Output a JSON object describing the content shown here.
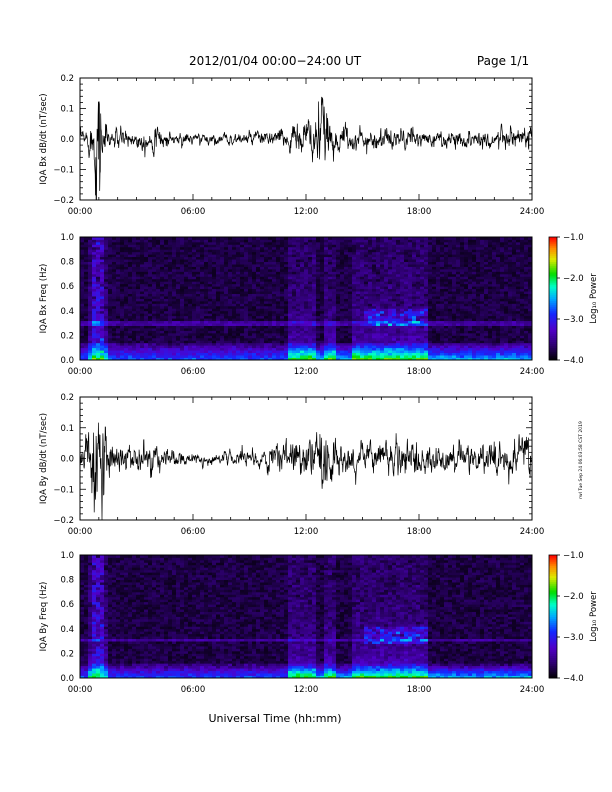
{
  "header": {
    "title": "2012/01/04  00:00−24:00 UT",
    "page": "Page 1/1"
  },
  "footer": {
    "xlabel": "Universal Time (hh:mm)",
    "side_note": "rwl Tue Sep 24 06:03:58 CST 2019"
  },
  "chart_data": [
    {
      "type": "line",
      "ylabel": "IQA Bx dB/dt (nT/sec)",
      "xlim": [
        0,
        24
      ],
      "ylim": [
        -0.2,
        0.2
      ],
      "x_ticks": [
        "00:00",
        "06:00",
        "12:00",
        "18:00",
        "24:00"
      ],
      "y_ticks": [
        "−0.2",
        "−0.1",
        "0.0",
        "0.1",
        "0.2"
      ],
      "y_tick_values": [
        -0.2,
        -0.1,
        0.0,
        0.1,
        0.2
      ],
      "envelope": {
        "hours": [
          0,
          0.5,
          0.8,
          1.0,
          1.2,
          1.5,
          2,
          3,
          3.5,
          4,
          5,
          6,
          7,
          8,
          9,
          10,
          11,
          11.5,
          12,
          12.5,
          12.8,
          13,
          13.3,
          14,
          15,
          16,
          17,
          18,
          19,
          20,
          21,
          22,
          23,
          23.6,
          23.8,
          24
        ],
        "amplitude": [
          0.02,
          0.03,
          0.1,
          0.2,
          0.08,
          0.03,
          0.025,
          0.02,
          0.03,
          0.025,
          0.02,
          0.012,
          0.012,
          0.012,
          0.015,
          0.02,
          0.025,
          0.03,
          0.05,
          0.06,
          0.1,
          0.08,
          0.04,
          0.03,
          0.025,
          0.025,
          0.025,
          0.02,
          0.018,
          0.02,
          0.02,
          0.025,
          0.03,
          0.03,
          0.04,
          0.03
        ]
      }
    },
    {
      "type": "heatmap",
      "ylabel": "IQA Bx Freq (Hz)",
      "xlim": [
        0,
        24
      ],
      "ylim": [
        0,
        1.0
      ],
      "x_ticks": [
        "00:00",
        "06:00",
        "12:00",
        "18:00",
        "24:00"
      ],
      "y_ticks": [
        "0.0",
        "0.2",
        "0.4",
        "0.6",
        "0.8",
        "1.0"
      ],
      "y_tick_values": [
        0,
        0.2,
        0.4,
        0.6,
        0.8,
        1.0
      ],
      "colorbar": {
        "label": "Log₁₀ Power",
        "range": [
          -4.0,
          -1.0
        ],
        "ticks": [
          "−1.0",
          "−2.0",
          "−3.0",
          "−4.0"
        ],
        "tick_values": [
          -1.0,
          -2.0,
          -3.0,
          -4.0
        ]
      },
      "features": {
        "background_log_power": -3.9,
        "low_freq_band_hz": 0.15,
        "band_line_hz": 0.3,
        "activity_hours": [
          [
            0.5,
            1.5
          ],
          [
            11.0,
            12.6
          ],
          [
            13.0,
            13.5
          ],
          [
            14.5,
            18.5
          ]
        ],
        "emission_band": {
          "hours": [
            15.0,
            18.5
          ],
          "freq_hz": [
            0.28,
            0.42
          ]
        }
      }
    },
    {
      "type": "line",
      "ylabel": "IQA By dB/dt (nT/sec)",
      "xlim": [
        0,
        24
      ],
      "ylim": [
        -0.2,
        0.2
      ],
      "x_ticks": [
        "00:00",
        "06:00",
        "12:00",
        "18:00",
        "24:00"
      ],
      "y_ticks": [
        "−0.2",
        "−0.1",
        "0.0",
        "0.1",
        "0.2"
      ],
      "y_tick_values": [
        -0.2,
        -0.1,
        0.0,
        0.1,
        0.2
      ],
      "envelope": {
        "hours": [
          0,
          0.5,
          0.8,
          1.0,
          1.2,
          1.5,
          2,
          3,
          3.5,
          4,
          5,
          6,
          7,
          8,
          9,
          10,
          11,
          11.5,
          12,
          12.5,
          12.8,
          13,
          13.3,
          14,
          15,
          16,
          17,
          18,
          19,
          20,
          21,
          22,
          23,
          23.6,
          23.8,
          24
        ],
        "amplitude": [
          0.03,
          0.05,
          0.15,
          0.2,
          0.15,
          0.06,
          0.04,
          0.035,
          0.05,
          0.035,
          0.02,
          0.012,
          0.012,
          0.015,
          0.02,
          0.03,
          0.035,
          0.04,
          0.05,
          0.07,
          0.1,
          0.08,
          0.05,
          0.04,
          0.035,
          0.04,
          0.045,
          0.035,
          0.03,
          0.035,
          0.035,
          0.04,
          0.045,
          0.05,
          0.12,
          0.05
        ]
      }
    },
    {
      "type": "heatmap",
      "ylabel": "IQA By Freq (Hz)",
      "xlim": [
        0,
        24
      ],
      "ylim": [
        0,
        1.0
      ],
      "x_ticks": [
        "00:00",
        "06:00",
        "12:00",
        "18:00",
        "24:00"
      ],
      "y_ticks": [
        "0.0",
        "0.2",
        "0.4",
        "0.6",
        "0.8",
        "1.0"
      ],
      "y_tick_values": [
        0,
        0.2,
        0.4,
        0.6,
        0.8,
        1.0
      ],
      "colorbar": {
        "label": "Log₁₀ Power",
        "range": [
          -4.0,
          -1.0
        ],
        "ticks": [
          "−1.0",
          "−2.0",
          "−3.0",
          "−4.0"
        ],
        "tick_values": [
          -1.0,
          -2.0,
          -3.0,
          -4.0
        ]
      },
      "features": {
        "background_log_power": -3.9,
        "low_freq_band_hz": 0.12,
        "band_line_hz": 0.31,
        "activity_hours": [
          [
            0.5,
            1.5
          ],
          [
            11.0,
            12.6
          ],
          [
            13.0,
            13.5
          ],
          [
            14.5,
            18.5
          ]
        ],
        "emission_band": {
          "hours": [
            15.0,
            18.5
          ],
          "freq_hz": [
            0.28,
            0.42
          ]
        }
      }
    }
  ]
}
